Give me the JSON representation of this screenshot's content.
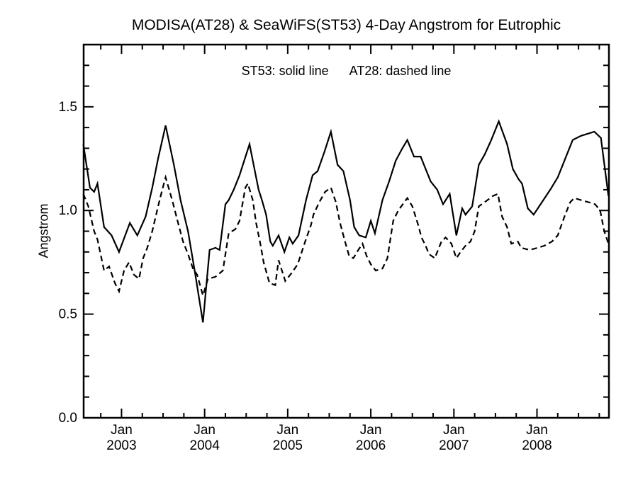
{
  "title": "MODISA(AT28) & SeaWiFS(ST53) 4-Day Angstrom for Eutrophic",
  "legend_items": [
    "ST53: solid line",
    "AT28: dashed line"
  ],
  "colors": {
    "line": "#000000",
    "background": "#ffffff",
    "text": "#000000"
  },
  "chart_data": {
    "type": "line",
    "title": "MODISA(AT28) & SeaWiFS(ST53) 4-Day Angstrom for Eutrophic",
    "xlabel": "",
    "ylabel": "Angstrom",
    "annotation": "ST53: solid line   AT28: dashed line",
    "legend_position": "top-center-inside",
    "grid": false,
    "xlim": [
      2002.544,
      2008.866
    ],
    "ylim": [
      0,
      1.8
    ],
    "x_minor_step": 0.25,
    "y_minor_step": 0.1,
    "x_ticks": [
      {
        "value": 2003,
        "label_top": "Jan",
        "label_bottom": "2003"
      },
      {
        "value": 2004,
        "label_top": "Jan",
        "label_bottom": "2004"
      },
      {
        "value": 2005,
        "label_top": "Jan",
        "label_bottom": "2005"
      },
      {
        "value": 2006,
        "label_top": "Jan",
        "label_bottom": "2006"
      },
      {
        "value": 2007,
        "label_top": "Jan",
        "label_bottom": "2007"
      },
      {
        "value": 2008,
        "label_top": "Jan",
        "label_bottom": "2008"
      }
    ],
    "y_ticks": [
      {
        "value": 0.0,
        "label": "0.0"
      },
      {
        "value": 0.5,
        "label": "0.5"
      },
      {
        "value": 1.0,
        "label": "1.0"
      },
      {
        "value": 1.5,
        "label": "1.5"
      }
    ],
    "series": [
      {
        "name": "ST53",
        "style": "solid",
        "points": [
          [
            2002.54,
            1.32
          ],
          [
            2002.62,
            1.11
          ],
          [
            2002.67,
            1.09
          ],
          [
            2002.71,
            1.13
          ],
          [
            2002.79,
            0.92
          ],
          [
            2002.88,
            0.88
          ],
          [
            2002.97,
            0.8
          ],
          [
            2003.1,
            0.94
          ],
          [
            2003.19,
            0.88
          ],
          [
            2003.29,
            0.97
          ],
          [
            2003.37,
            1.11
          ],
          [
            2003.44,
            1.25
          ],
          [
            2003.53,
            1.41
          ],
          [
            2003.63,
            1.22
          ],
          [
            2003.71,
            1.05
          ],
          [
            2003.8,
            0.9
          ],
          [
            2003.88,
            0.71
          ],
          [
            2003.98,
            0.46
          ],
          [
            2004.06,
            0.81
          ],
          [
            2004.13,
            0.82
          ],
          [
            2004.18,
            0.81
          ],
          [
            2004.25,
            1.03
          ],
          [
            2004.29,
            1.05
          ],
          [
            2004.35,
            1.1
          ],
          [
            2004.42,
            1.17
          ],
          [
            2004.54,
            1.32
          ],
          [
            2004.59,
            1.22
          ],
          [
            2004.65,
            1.1
          ],
          [
            2004.69,
            1.05
          ],
          [
            2004.74,
            0.98
          ],
          [
            2004.79,
            0.85
          ],
          [
            2004.82,
            0.83
          ],
          [
            2004.89,
            0.88
          ],
          [
            2004.96,
            0.8
          ],
          [
            2005.02,
            0.87
          ],
          [
            2005.06,
            0.84
          ],
          [
            2005.13,
            0.88
          ],
          [
            2005.22,
            1.05
          ],
          [
            2005.3,
            1.17
          ],
          [
            2005.36,
            1.19
          ],
          [
            2005.44,
            1.28
          ],
          [
            2005.52,
            1.38
          ],
          [
            2005.6,
            1.22
          ],
          [
            2005.67,
            1.19
          ],
          [
            2005.75,
            1.05
          ],
          [
            2005.8,
            0.92
          ],
          [
            2005.86,
            0.88
          ],
          [
            2005.94,
            0.87
          ],
          [
            2006.0,
            0.95
          ],
          [
            2006.05,
            0.89
          ],
          [
            2006.14,
            1.05
          ],
          [
            2006.22,
            1.14
          ],
          [
            2006.3,
            1.24
          ],
          [
            2006.38,
            1.3
          ],
          [
            2006.44,
            1.34
          ],
          [
            2006.52,
            1.26
          ],
          [
            2006.6,
            1.26
          ],
          [
            2006.72,
            1.14
          ],
          [
            2006.8,
            1.1
          ],
          [
            2006.87,
            1.03
          ],
          [
            2006.95,
            1.08
          ],
          [
            2007.03,
            0.88
          ],
          [
            2007.1,
            1.01
          ],
          [
            2007.14,
            0.98
          ],
          [
            2007.22,
            1.02
          ],
          [
            2007.3,
            1.22
          ],
          [
            2007.37,
            1.27
          ],
          [
            2007.45,
            1.34
          ],
          [
            2007.54,
            1.43
          ],
          [
            2007.64,
            1.32
          ],
          [
            2007.71,
            1.2
          ],
          [
            2007.78,
            1.15
          ],
          [
            2007.82,
            1.13
          ],
          [
            2007.89,
            1.01
          ],
          [
            2007.96,
            0.98
          ],
          [
            2008.06,
            1.04
          ],
          [
            2008.16,
            1.1
          ],
          [
            2008.25,
            1.16
          ],
          [
            2008.43,
            1.34
          ],
          [
            2008.53,
            1.36
          ],
          [
            2008.69,
            1.38
          ],
          [
            2008.77,
            1.35
          ],
          [
            2008.86,
            1.07
          ]
        ]
      },
      {
        "name": "AT28",
        "style": "dashed",
        "points": [
          [
            2002.54,
            1.08
          ],
          [
            2002.6,
            1.02
          ],
          [
            2002.67,
            0.9
          ],
          [
            2002.71,
            0.86
          ],
          [
            2002.79,
            0.71
          ],
          [
            2002.85,
            0.73
          ],
          [
            2002.92,
            0.65
          ],
          [
            2002.97,
            0.61
          ],
          [
            2003.03,
            0.71
          ],
          [
            2003.09,
            0.75
          ],
          [
            2003.15,
            0.69
          ],
          [
            2003.21,
            0.67
          ],
          [
            2003.26,
            0.77
          ],
          [
            2003.31,
            0.82
          ],
          [
            2003.37,
            0.9
          ],
          [
            2003.44,
            1.02
          ],
          [
            2003.49,
            1.1
          ],
          [
            2003.53,
            1.16
          ],
          [
            2003.61,
            1.05
          ],
          [
            2003.68,
            0.94
          ],
          [
            2003.74,
            0.85
          ],
          [
            2003.8,
            0.79
          ],
          [
            2003.86,
            0.72
          ],
          [
            2003.91,
            0.69
          ],
          [
            2003.98,
            0.59
          ],
          [
            2004.04,
            0.67
          ],
          [
            2004.13,
            0.68
          ],
          [
            2004.22,
            0.71
          ],
          [
            2004.29,
            0.89
          ],
          [
            2004.37,
            0.91
          ],
          [
            2004.42,
            0.95
          ],
          [
            2004.49,
            1.11
          ],
          [
            2004.52,
            1.13
          ],
          [
            2004.58,
            1.05
          ],
          [
            2004.62,
            0.94
          ],
          [
            2004.67,
            0.84
          ],
          [
            2004.71,
            0.75
          ],
          [
            2004.78,
            0.65
          ],
          [
            2004.85,
            0.64
          ],
          [
            2004.89,
            0.76
          ],
          [
            2004.97,
            0.66
          ],
          [
            2005.05,
            0.7
          ],
          [
            2005.12,
            0.74
          ],
          [
            2005.21,
            0.85
          ],
          [
            2005.28,
            0.93
          ],
          [
            2005.31,
            0.98
          ],
          [
            2005.38,
            1.04
          ],
          [
            2005.45,
            1.09
          ],
          [
            2005.52,
            1.11
          ],
          [
            2005.58,
            1.04
          ],
          [
            2005.63,
            0.94
          ],
          [
            2005.69,
            0.85
          ],
          [
            2005.74,
            0.78
          ],
          [
            2005.79,
            0.77
          ],
          [
            2005.85,
            0.81
          ],
          [
            2005.9,
            0.84
          ],
          [
            2005.95,
            0.78
          ],
          [
            2006.0,
            0.74
          ],
          [
            2006.06,
            0.71
          ],
          [
            2006.14,
            0.72
          ],
          [
            2006.2,
            0.77
          ],
          [
            2006.27,
            0.95
          ],
          [
            2006.33,
            1.0
          ],
          [
            2006.44,
            1.06
          ],
          [
            2006.5,
            1.02
          ],
          [
            2006.57,
            0.93
          ],
          [
            2006.61,
            0.87
          ],
          [
            2006.66,
            0.83
          ],
          [
            2006.7,
            0.79
          ],
          [
            2006.77,
            0.77
          ],
          [
            2006.85,
            0.85
          ],
          [
            2006.9,
            0.87
          ],
          [
            2006.97,
            0.84
          ],
          [
            2007.03,
            0.77
          ],
          [
            2007.08,
            0.8
          ],
          [
            2007.14,
            0.83
          ],
          [
            2007.2,
            0.85
          ],
          [
            2007.25,
            0.9
          ],
          [
            2007.3,
            1.02
          ],
          [
            2007.37,
            1.04
          ],
          [
            2007.47,
            1.07
          ],
          [
            2007.53,
            1.08
          ],
          [
            2007.58,
            0.97
          ],
          [
            2007.64,
            0.92
          ],
          [
            2007.69,
            0.84
          ],
          [
            2007.77,
            0.85
          ],
          [
            2007.81,
            0.82
          ],
          [
            2007.91,
            0.81
          ],
          [
            2008.01,
            0.82
          ],
          [
            2008.09,
            0.83
          ],
          [
            2008.18,
            0.85
          ],
          [
            2008.25,
            0.88
          ],
          [
            2008.33,
            0.97
          ],
          [
            2008.4,
            1.04
          ],
          [
            2008.45,
            1.06
          ],
          [
            2008.53,
            1.05
          ],
          [
            2008.62,
            1.04
          ],
          [
            2008.7,
            1.03
          ],
          [
            2008.76,
            1.0
          ],
          [
            2008.81,
            0.9
          ],
          [
            2008.86,
            0.84
          ]
        ]
      }
    ]
  }
}
